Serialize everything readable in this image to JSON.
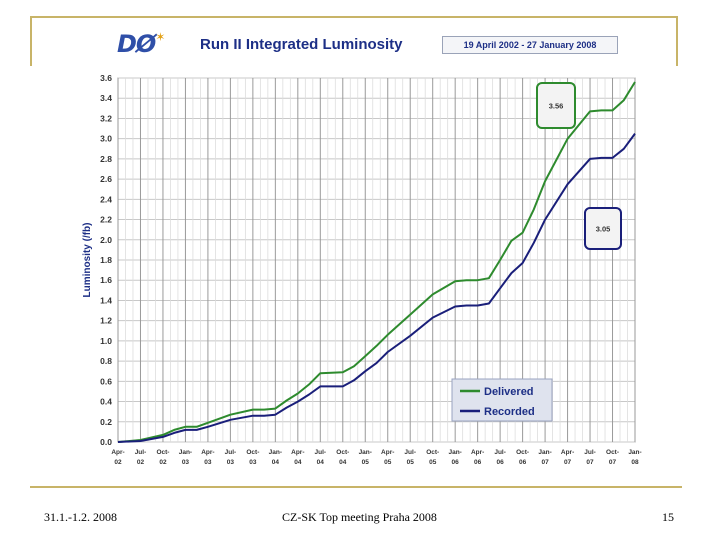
{
  "header": {
    "logo_text": "DØ",
    "title": "Run II Integrated Luminosity",
    "date_range": "19 April 2002 - 27 January 2008"
  },
  "footer": {
    "date": "31.1.-1.2. 2008",
    "meeting": "CZ-SK Top meeting Praha 2008",
    "page_number": "15"
  },
  "colors": {
    "delivered": "#2e8b2e",
    "recorded": "#1a1f7a",
    "grid": "#c8c8c8",
    "title": "#1d2f86"
  },
  "chart_data": {
    "type": "line",
    "title": "Run II Integrated Luminosity",
    "ylabel": "Luminosity (/fb)",
    "xlabel": "",
    "ylim": [
      0,
      3.6
    ],
    "yticks": [
      "0.0",
      "0.2",
      "0.4",
      "0.6",
      "0.8",
      "1.0",
      "1.2",
      "1.4",
      "1.6",
      "1.8",
      "2.0",
      "2.2",
      "2.4",
      "2.6",
      "2.8",
      "3.0",
      "3.2",
      "3.4",
      "3.6"
    ],
    "xticks": [
      [
        "Apr-",
        "02"
      ],
      [
        "Jul-",
        "02"
      ],
      [
        "Oct-",
        "02"
      ],
      [
        "Jan-",
        "03"
      ],
      [
        "Apr-",
        "03"
      ],
      [
        "Jul-",
        "03"
      ],
      [
        "Oct-",
        "03"
      ],
      [
        "Jan-",
        "04"
      ],
      [
        "Apr-",
        "04"
      ],
      [
        "Jul-",
        "04"
      ],
      [
        "Oct-",
        "04"
      ],
      [
        "Jan-",
        "05"
      ],
      [
        "Apr-",
        "05"
      ],
      [
        "Jul-",
        "05"
      ],
      [
        "Oct-",
        "05"
      ],
      [
        "Jan-",
        "06"
      ],
      [
        "Apr-",
        "06"
      ],
      [
        "Jul-",
        "06"
      ],
      [
        "Oct-",
        "06"
      ],
      [
        "Jan-",
        "07"
      ],
      [
        "Apr-",
        "07"
      ],
      [
        "Jul-",
        "07"
      ],
      [
        "Oct-",
        "07"
      ],
      [
        "Jan-",
        "08"
      ]
    ],
    "x": [
      0,
      1,
      2,
      2.5,
      3,
      3.5,
      4,
      5,
      6,
      6.5,
      7,
      7.5,
      8,
      8.5,
      9,
      10,
      10.5,
      11,
      11.5,
      12,
      13,
      14,
      15,
      15.5,
      16,
      16.5,
      17,
      17.5,
      18,
      18.5,
      19,
      20,
      21,
      21.5,
      22,
      22.5,
      23
    ],
    "series": [
      {
        "name": "Delivered",
        "values": [
          0,
          0.02,
          0.07,
          0.12,
          0.15,
          0.15,
          0.19,
          0.27,
          0.32,
          0.32,
          0.33,
          0.41,
          0.48,
          0.57,
          0.68,
          0.69,
          0.75,
          0.85,
          0.95,
          1.06,
          1.26,
          1.46,
          1.59,
          1.6,
          1.6,
          1.62,
          1.8,
          1.99,
          2.07,
          2.3,
          2.58,
          3.0,
          3.27,
          3.28,
          3.28,
          3.38,
          3.56
        ]
      },
      {
        "name": "Recorded",
        "values": [
          0,
          0.01,
          0.05,
          0.09,
          0.12,
          0.12,
          0.15,
          0.22,
          0.26,
          0.26,
          0.27,
          0.34,
          0.4,
          0.47,
          0.55,
          0.55,
          0.61,
          0.7,
          0.78,
          0.89,
          1.05,
          1.23,
          1.34,
          1.35,
          1.35,
          1.37,
          1.52,
          1.67,
          1.77,
          1.97,
          2.2,
          2.55,
          2.8,
          2.81,
          2.81,
          2.9,
          3.05
        ]
      }
    ],
    "legend": {
      "position": "bottom-right",
      "entries": [
        "Delivered",
        "Recorded"
      ]
    },
    "annotations": [
      {
        "text": "3.56",
        "series": "Delivered"
      },
      {
        "text": "3.05",
        "series": "Recorded"
      }
    ]
  }
}
